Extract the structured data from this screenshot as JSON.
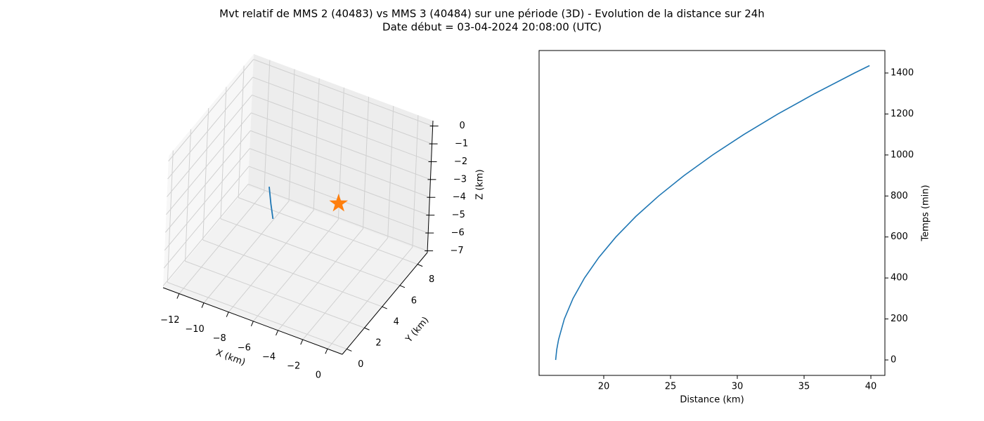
{
  "title": "Mvt relatif de MMS 2 (40483) vs MMS 3 (40484) sur une période (3D) - Evolution de la distance sur 24h",
  "subtitle": "Date début = 03-04-2024 20:08:00 (UTC)",
  "chart_data": [
    {
      "type": "line3d",
      "xlabel": "X (km)",
      "ylabel": "Y (km)",
      "zlabel": "Z (km)",
      "xlim": [
        -13.3,
        1.2
      ],
      "ylim": [
        -0.5,
        9.1
      ],
      "zlim": [
        -7.1,
        0.3
      ],
      "xticks": [
        {
          "value": -12,
          "label": "−12"
        },
        {
          "value": -10,
          "label": "−10"
        },
        {
          "value": -8,
          "label": "−8"
        },
        {
          "value": -6,
          "label": "−6"
        },
        {
          "value": -4,
          "label": "−4"
        },
        {
          "value": -2,
          "label": "−2"
        },
        0
      ],
      "yticks": [
        0,
        2,
        4,
        6,
        8
      ],
      "zticks": [
        0,
        {
          "value": -1,
          "label": "−1"
        },
        {
          "value": -2,
          "label": "−2"
        },
        {
          "value": -3,
          "label": "−3"
        },
        {
          "value": -4,
          "label": "−4"
        },
        {
          "value": -5,
          "label": "−5"
        },
        {
          "value": -6,
          "label": "−6"
        },
        {
          "value": -7,
          "label": "−7"
        }
      ],
      "grid": true,
      "series": [
        {
          "color": "#1f77b4",
          "marker": "none",
          "x": [
            -9.69,
            -9.5,
            -9.28
          ],
          "y": [
            6.22,
            6.22,
            6.22
          ],
          "z": [
            -4.5,
            -5.4,
            -6.2
          ]
        },
        {
          "color": "#ff7f0e",
          "marker": "star",
          "x": [
            -2.82
          ],
          "y": [
            4.3
          ],
          "z": [
            -2.53
          ]
        }
      ]
    },
    {
      "type": "line",
      "xlabel": "Distance (km)",
      "ylabel": "Temps (min)",
      "xlim": [
        15.16,
        41.05
      ],
      "ylim": [
        -75.3,
        1509.6
      ],
      "xticks": [
        20,
        25,
        30,
        35,
        40
      ],
      "yticks": [
        0,
        200,
        400,
        600,
        800,
        1000,
        1200,
        1400
      ],
      "yaxis_side": "right",
      "x": [
        16.4,
        16.48,
        16.62,
        17.05,
        17.7,
        18.56,
        19.63,
        20.91,
        22.4,
        24.11,
        26.02,
        28.15,
        30.49,
        33.04,
        35.81,
        38.78,
        39.9
      ],
      "series": [
        {
          "color": "#1f77b4",
          "values": [
            0,
            50,
            100,
            200,
            300,
            400,
            500,
            600,
            700,
            800,
            900,
            1000,
            1100,
            1200,
            1300,
            1400,
            1436
          ]
        }
      ]
    }
  ]
}
